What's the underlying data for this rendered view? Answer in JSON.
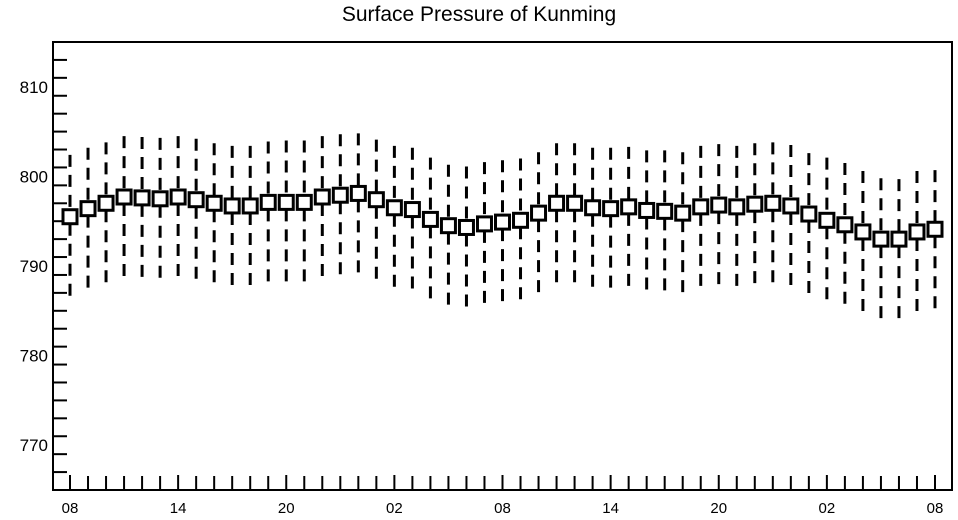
{
  "chart_data": {
    "type": "boxplot",
    "title": "Surface Pressure of Kunming",
    "xlabel": "",
    "ylabel": "",
    "ylim": [
      765,
      815
    ],
    "yticks": [
      770,
      780,
      790,
      800,
      810
    ],
    "ytick_labels": [
      "770",
      "780",
      "790",
      "800",
      "810"
    ],
    "x_count": 49,
    "xtick_positions": [
      0,
      6,
      12,
      18,
      24,
      30,
      36,
      42,
      48
    ],
    "xtick_labels": [
      "08",
      "14",
      "20",
      "02",
      "08",
      "14",
      "20",
      "02",
      "08"
    ],
    "grid": false,
    "legend": "none",
    "series": [
      {
        "mean": [
          795.5,
          796.4,
          797.0,
          797.7,
          797.6,
          797.5,
          797.7,
          797.4,
          797.0,
          796.7,
          796.7,
          797.1,
          797.1,
          797.1,
          797.7,
          797.9,
          798.1,
          797.4,
          796.5,
          796.3,
          795.2,
          794.5,
          794.3,
          794.7,
          794.9,
          795.1,
          795.9,
          797.0,
          797.0,
          796.5,
          796.4,
          796.6,
          796.2,
          796.1,
          795.9,
          796.6,
          796.8,
          796.6,
          796.9,
          797.0,
          796.7,
          795.8,
          795.1,
          794.6,
          793.8,
          793.0,
          793.0,
          793.8,
          794.1
        ],
        "upper": [
          802.4,
          803.2,
          803.8,
          804.5,
          804.4,
          804.3,
          804.5,
          804.2,
          803.7,
          803.4,
          803.4,
          803.9,
          804.0,
          804.0,
          804.5,
          804.7,
          804.8,
          804.1,
          803.4,
          803.2,
          802.1,
          801.3,
          801.1,
          801.6,
          801.8,
          802.0,
          802.7,
          803.7,
          803.7,
          803.2,
          803.2,
          803.3,
          802.9,
          802.9,
          802.7,
          803.4,
          803.6,
          803.4,
          803.7,
          803.8,
          803.5,
          802.6,
          802.1,
          801.5,
          800.6,
          799.8,
          799.7,
          800.6,
          800.7
        ],
        "lower": [
          786.4,
          787.2,
          787.8,
          788.3,
          788.2,
          788.1,
          788.3,
          788.0,
          787.6,
          787.4,
          787.4,
          787.8,
          787.9,
          787.9,
          788.3,
          788.6,
          788.8,
          788.1,
          787.3,
          787.0,
          786.1,
          785.3,
          785.2,
          785.6,
          785.8,
          786.0,
          786.7,
          787.7,
          787.6,
          787.2,
          787.0,
          787.2,
          786.8,
          786.7,
          786.6,
          787.4,
          787.6,
          787.5,
          787.7,
          787.7,
          787.5,
          786.6,
          785.9,
          785.4,
          784.8,
          783.9,
          783.8,
          784.8,
          785.0
        ]
      }
    ]
  }
}
